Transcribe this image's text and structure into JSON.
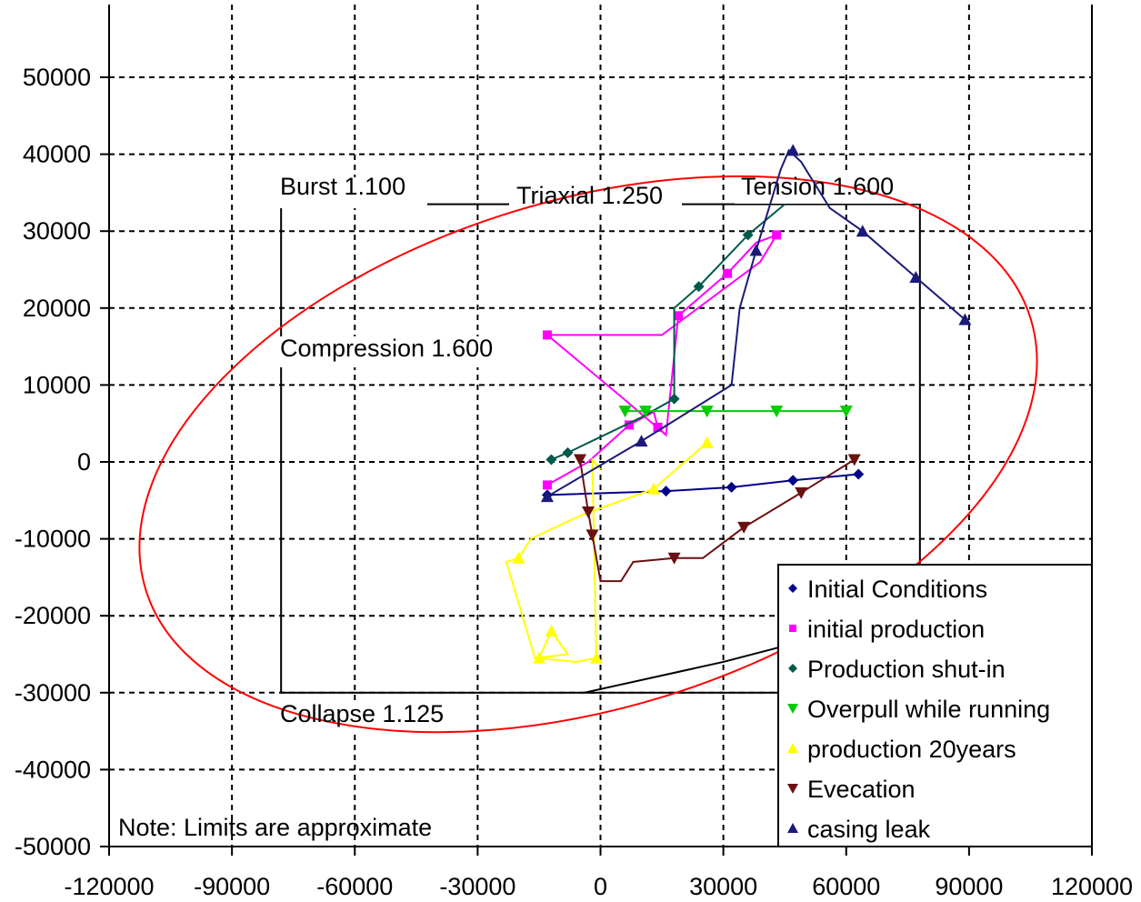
{
  "chart_data": {
    "type": "scatter",
    "title": "",
    "xlabel": "",
    "ylabel": "",
    "xlim": [
      -120000,
      120000
    ],
    "ylim": [
      -50000,
      50000
    ],
    "x_ticks": [
      -120000,
      -90000,
      -60000,
      -30000,
      0,
      30000,
      60000,
      90000,
      120000
    ],
    "y_ticks": [
      50000,
      40000,
      30000,
      20000,
      10000,
      0,
      -10000,
      -20000,
      -30000,
      -40000,
      -50000
    ],
    "grid": true,
    "legend_position": "bottom-right",
    "note": "Note: Limits are approximate",
    "limit_labels": {
      "burst": "Burst 1.100",
      "triaxial": "Triaxial 1.250",
      "tension": "Tension 1.600",
      "compression": "Compression 1.600",
      "collapse": "Collapse 1.125"
    },
    "limits": {
      "rectangle": {
        "x": [
          -78000,
          78000
        ],
        "y": [
          -30000,
          33500
        ]
      },
      "ellipse": {
        "center_x": -3000,
        "center_y": 1000,
        "semi_x": 113000,
        "semi_y": 33000,
        "rotation_deg": -17,
        "color": "#ff0000"
      },
      "bottom_line": [
        [
          -4000,
          -30000
        ],
        [
          30000,
          -26000
        ],
        [
          48000,
          -23500
        ]
      ]
    },
    "series": [
      {
        "name": "Initial Conditions",
        "color": "#00008b",
        "marker": "diamond",
        "points": [
          [
            -13000,
            -4300
          ],
          [
            16000,
            -3800
          ],
          [
            32000,
            -3300
          ],
          [
            47000,
            -2400
          ],
          [
            63000,
            -1600
          ]
        ],
        "path": [
          [
            -13000,
            -4300
          ],
          [
            16000,
            -3800
          ],
          [
            32000,
            -3300
          ],
          [
            47000,
            -2400
          ],
          [
            63000,
            -1600
          ]
        ]
      },
      {
        "name": "initial production",
        "color": "#ff00ff",
        "marker": "square",
        "points": [
          [
            -13000,
            16500
          ],
          [
            -13000,
            -3000
          ],
          [
            7000,
            4800
          ],
          [
            14000,
            4500
          ],
          [
            19000,
            19000
          ],
          [
            31000,
            24500
          ],
          [
            43000,
            29500
          ]
        ],
        "path": [
          [
            -13000,
            -3000
          ],
          [
            -3000,
            0
          ],
          [
            7000,
            4800
          ],
          [
            13000,
            6500
          ],
          [
            14000,
            4500
          ],
          [
            16000,
            3500
          ],
          [
            19000,
            19000
          ],
          [
            31000,
            24500
          ],
          [
            38000,
            28500
          ],
          [
            43000,
            29500
          ],
          [
            39000,
            26000
          ],
          [
            15000,
            16500
          ],
          [
            -13000,
            16500
          ],
          [
            5000,
            8500
          ],
          [
            16000,
            3500
          ]
        ]
      },
      {
        "name": "Production shut-in",
        "color": "#005a4a",
        "marker": "diamond",
        "points": [
          [
            -12000,
            300
          ],
          [
            -8000,
            1200
          ],
          [
            18000,
            8200
          ],
          [
            24000,
            22800
          ],
          [
            36000,
            29500
          ]
        ],
        "path": [
          [
            -12000,
            300
          ],
          [
            -8000,
            1200
          ],
          [
            10000,
            5800
          ],
          [
            18000,
            8200
          ],
          [
            18000,
            20000
          ],
          [
            24000,
            22800
          ],
          [
            36000,
            29500
          ],
          [
            45000,
            33500
          ]
        ]
      },
      {
        "name": "Overpull while running",
        "color": "#00cc00",
        "marker": "triangle-down",
        "points": [
          [
            6000,
            6600
          ],
          [
            11000,
            6600
          ],
          [
            26000,
            6600
          ],
          [
            43000,
            6600
          ],
          [
            60000,
            6600
          ]
        ],
        "path": [
          [
            6000,
            6600
          ],
          [
            11000,
            6600
          ],
          [
            26000,
            6600
          ],
          [
            43000,
            6600
          ],
          [
            60000,
            6600
          ]
        ]
      },
      {
        "name": "production 20years",
        "color": "#ffff00",
        "marker": "triangle-up",
        "points": [
          [
            26000,
            2500
          ],
          [
            13000,
            -3500
          ],
          [
            -20000,
            -12500
          ],
          [
            -12000,
            -22000
          ],
          [
            -15000,
            -25500
          ],
          [
            -1000,
            -25500
          ]
        ],
        "path": [
          [
            26000,
            2500
          ],
          [
            13000,
            -3500
          ],
          [
            -5000,
            -7000
          ],
          [
            -17000,
            -10000
          ],
          [
            -20000,
            -12500
          ],
          [
            -23000,
            -13000
          ],
          [
            -16000,
            -25500
          ],
          [
            -8000,
            -25000
          ],
          [
            -12000,
            -22000
          ],
          [
            -15000,
            -25500
          ],
          [
            -6000,
            -26000
          ],
          [
            -1000,
            -25500
          ],
          [
            -2000,
            300
          ],
          [
            0,
            -1000
          ]
        ]
      },
      {
        "name": "Evecation",
        "color": "#6b1010",
        "marker": "triangle-down",
        "points": [
          [
            -5000,
            300
          ],
          [
            -3000,
            -6500
          ],
          [
            -2000,
            -9500
          ],
          [
            18000,
            -12500
          ],
          [
            35000,
            -8500
          ],
          [
            49000,
            -4000
          ],
          [
            62000,
            300
          ]
        ],
        "path": [
          [
            -5000,
            300
          ],
          [
            -3000,
            -6500
          ],
          [
            -2000,
            -9500
          ],
          [
            0,
            -15500
          ],
          [
            5000,
            -15500
          ],
          [
            8000,
            -13000
          ],
          [
            18000,
            -12500
          ],
          [
            25000,
            -12500
          ],
          [
            30000,
            -10500
          ],
          [
            35000,
            -8500
          ],
          [
            49000,
            -4000
          ],
          [
            62000,
            300
          ]
        ]
      },
      {
        "name": "casing leak",
        "color": "#1a1a7a",
        "marker": "triangle-up",
        "points": [
          [
            -13000,
            -4500
          ],
          [
            10000,
            2700
          ],
          [
            38000,
            27500
          ],
          [
            47000,
            40500
          ],
          [
            64000,
            30000
          ],
          [
            77000,
            24000
          ],
          [
            89000,
            18500
          ]
        ],
        "path": [
          [
            -13000,
            -4500
          ],
          [
            10000,
            2700
          ],
          [
            32000,
            10000
          ],
          [
            34000,
            20000
          ],
          [
            38000,
            27500
          ],
          [
            44000,
            38000
          ],
          [
            46000,
            40500
          ],
          [
            49000,
            39000
          ],
          [
            56000,
            33000
          ],
          [
            64000,
            30000
          ],
          [
            77000,
            24000
          ],
          [
            89000,
            18500
          ]
        ]
      }
    ]
  }
}
